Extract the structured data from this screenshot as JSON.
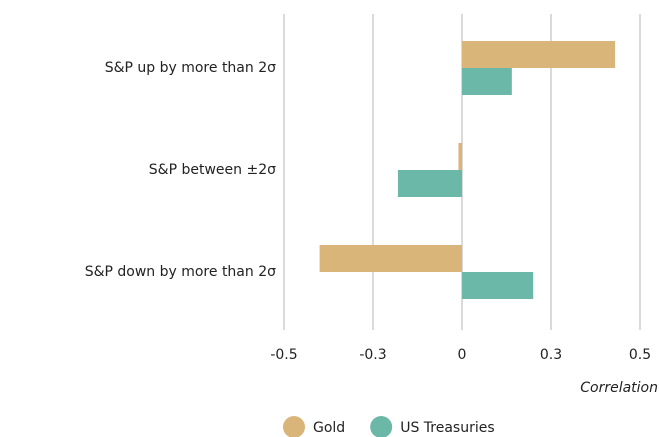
{
  "chart_data": {
    "type": "hbar",
    "categories": [
      "S&P up by more than 2σ",
      "S&P between ±2σ",
      "S&P down by more than 2σ"
    ],
    "series": [
      {
        "name": "Gold",
        "color": "#d9b57a",
        "values": [
          0.43,
          -0.01,
          -0.4
        ]
      },
      {
        "name": "US Treasuries",
        "color": "#6bb8a8",
        "values": [
          0.14,
          -0.18,
          0.2
        ]
      }
    ],
    "x_label": "Correlation",
    "xlim": [
      -0.5,
      0.5
    ],
    "xticks": [
      {
        "value": -0.5,
        "label": "-0.5"
      },
      {
        "value": -0.25,
        "label": "-0.3"
      },
      0,
      {
        "value": 0.25,
        "label": "0.3"
      },
      {
        "value": 0.5,
        "label": "0.5"
      }
    ],
    "grid": true,
    "legend": "bottom"
  }
}
